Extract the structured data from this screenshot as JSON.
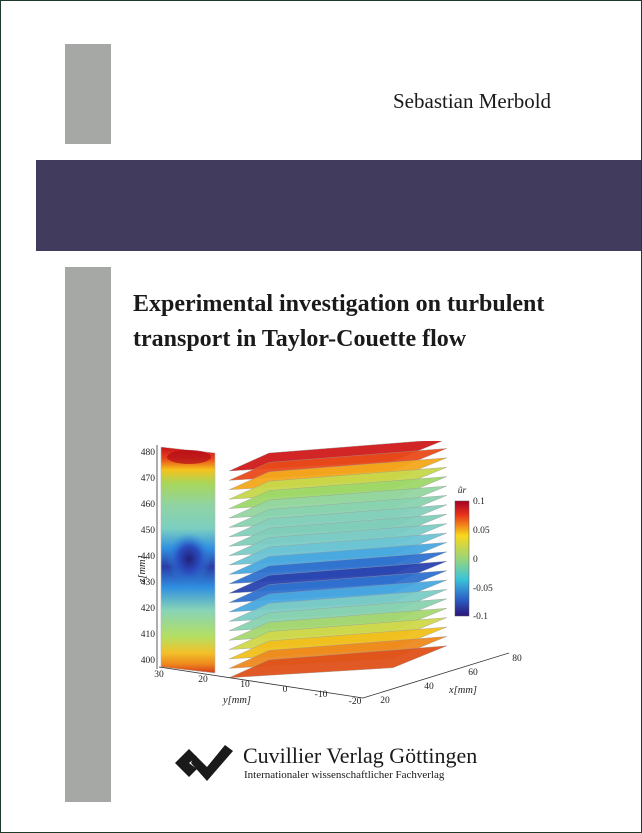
{
  "author": "Sebastian Merbold",
  "title_lines": [
    "Experimental investigation on turbulent",
    "transport in Taylor-Couette flow"
  ],
  "figure": {
    "z_label": "z[mm]",
    "y_label": "y[mm]",
    "x_label": "x[mm]",
    "colorbar_label": "ũr",
    "z_ticks": [
      "480",
      "470",
      "460",
      "450",
      "440",
      "430",
      "420",
      "410",
      "400"
    ],
    "y_ticks": [
      "30",
      "20",
      "10",
      "0",
      "-10",
      "-20"
    ],
    "x_ticks": [
      "20",
      "40",
      "60",
      "80"
    ],
    "colorbar_ticks": [
      "0.1",
      "0.05",
      "0",
      "-0.05",
      "-0.1"
    ]
  },
  "publisher": {
    "name": "Cuvillier Verlag Göttingen",
    "subtitle": "Internationaler wissenschaftlicher Fachverlag"
  },
  "colors": {
    "band": "#413b5e",
    "side_bars": "#a6a8a6",
    "border": "#1d3a2a"
  }
}
